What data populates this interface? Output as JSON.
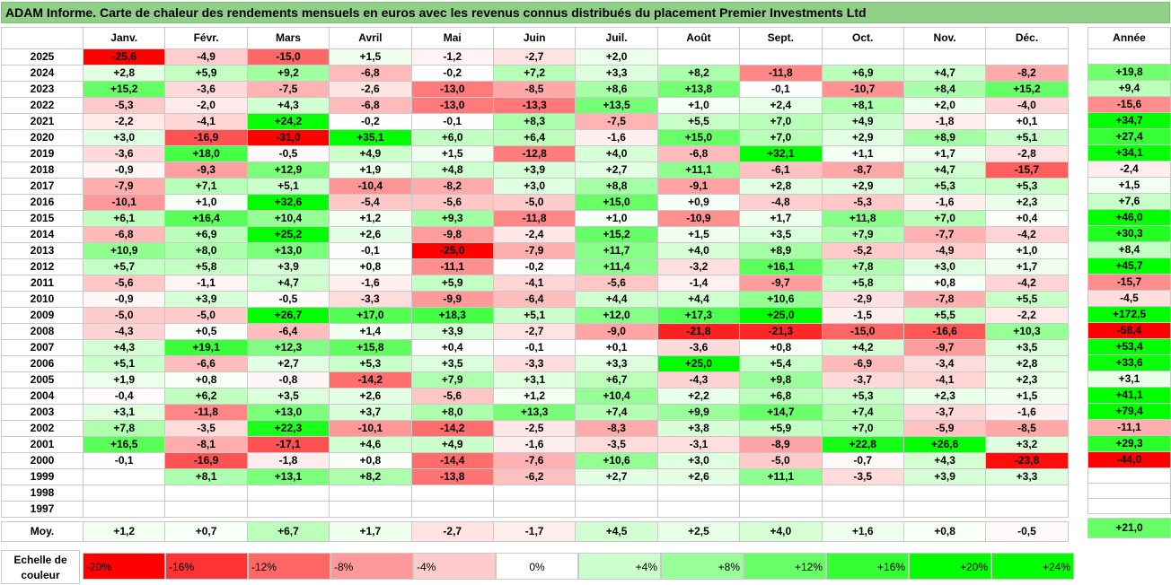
{
  "title": "ADAM Informe. Carte de chaleur des rendements mensuels en euros avec les revenus connus distribués du placement Premier Investments Ltd",
  "months": [
    "Janv.",
    "Févr.",
    "Mars",
    "Avril",
    "Mai",
    "Juin",
    "Juil.",
    "Août",
    "Sept.",
    "Oct.",
    "Nov.",
    "Déc."
  ],
  "year_header": "Année",
  "avg_label": "Moy.",
  "chart_data": {
    "type": "heatmap",
    "rows": [
      {
        "year": "2025",
        "values": [
          "-25,6",
          "-4,9",
          "-15,0",
          "+1,5",
          "-1,2",
          "-2,7",
          "+2,0",
          "",
          "",
          "",
          "",
          ""
        ],
        "annual": ""
      },
      {
        "year": "2024",
        "values": [
          "+2,8",
          "+5,9",
          "+9,2",
          "-6,8",
          "-0,2",
          "+7,2",
          "+3,3",
          "+8,2",
          "-11,8",
          "+6,9",
          "+4,7",
          "-8,2"
        ],
        "annual": "+19,8"
      },
      {
        "year": "2023",
        "values": [
          "+15,2",
          "-3,6",
          "-7,5",
          "-2,6",
          "-13,0",
          "-8,5",
          "+8,6",
          "+13,8",
          "-0,1",
          "-10,7",
          "+8,4",
          "+15,2"
        ],
        "annual": "+9,4"
      },
      {
        "year": "2022",
        "values": [
          "-5,3",
          "-2,0",
          "+4,3",
          "-6,8",
          "-13,0",
          "-13,3",
          "+13,5",
          "+1,0",
          "+2,4",
          "+8,1",
          "+2,0",
          "-4,0"
        ],
        "annual": "-15,6"
      },
      {
        "year": "2021",
        "values": [
          "-2,2",
          "-4,1",
          "+24,2",
          "-0,2",
          "-0,1",
          "+8,3",
          "-7,5",
          "+5,5",
          "+7,0",
          "+4,9",
          "-1,8",
          "+0,1"
        ],
        "annual": "+34,7"
      },
      {
        "year": "2020",
        "values": [
          "+3,0",
          "-16,9",
          "-31,0",
          "+35,1",
          "+6,0",
          "+6,4",
          "-1,6",
          "+15,0",
          "+7,0",
          "+2,9",
          "+8,9",
          "+5,1"
        ],
        "annual": "+27,4"
      },
      {
        "year": "2019",
        "values": [
          "-3,6",
          "+18,0",
          "-0,5",
          "+4,9",
          "+1,5",
          "-12,8",
          "+4,0",
          "-6,8",
          "+32,1",
          "+1,1",
          "+1,7",
          "-2,8"
        ],
        "annual": "+34,1"
      },
      {
        "year": "2018",
        "values": [
          "-0,9",
          "-9,3",
          "+12,9",
          "+1,9",
          "+4,8",
          "+3,9",
          "+2,7",
          "+11,1",
          "-6,1",
          "-8,7",
          "+4,7",
          "-15,7"
        ],
        "annual": "-2,4"
      },
      {
        "year": "2017",
        "values": [
          "-7,9",
          "+7,1",
          "+5,1",
          "-10,4",
          "-8,2",
          "+3,0",
          "+8,8",
          "-9,1",
          "+2,8",
          "+2,9",
          "+5,3",
          "+5,3"
        ],
        "annual": "+1,5"
      },
      {
        "year": "2016",
        "values": [
          "-10,1",
          "+1,0",
          "+32,6",
          "-5,4",
          "-5,6",
          "-5,0",
          "+15,0",
          "+0,9",
          "-4,8",
          "-5,3",
          "-1,6",
          "+2,3"
        ],
        "annual": "+7,6"
      },
      {
        "year": "2015",
        "values": [
          "+6,1",
          "+16,4",
          "+10,4",
          "+1,2",
          "+9,3",
          "-11,8",
          "+1,0",
          "-10,9",
          "+1,7",
          "+11,8",
          "+7,0",
          "+0,4"
        ],
        "annual": "+46,0"
      },
      {
        "year": "2014",
        "values": [
          "-6,8",
          "+6,9",
          "+25,2",
          "+2,6",
          "-9,8",
          "-2,4",
          "+15,2",
          "+1,5",
          "+3,5",
          "+7,9",
          "-7,7",
          "-4,2"
        ],
        "annual": "+30,3"
      },
      {
        "year": "2013",
        "values": [
          "+10,9",
          "+8,0",
          "+13,0",
          "-0,1",
          "-25,0",
          "-7,9",
          "+11,7",
          "+4,0",
          "+8,9",
          "-5,2",
          "-4,9",
          "+1,0"
        ],
        "annual": "+8,4"
      },
      {
        "year": "2012",
        "values": [
          "+5,7",
          "+5,8",
          "+3,9",
          "+0,8",
          "-11,1",
          "-0,2",
          "+11,4",
          "-3,2",
          "+16,1",
          "+7,8",
          "+3,0",
          "+1,7"
        ],
        "annual": "+45,7"
      },
      {
        "year": "2011",
        "values": [
          "-5,6",
          "-1,1",
          "+4,7",
          "-1,6",
          "+5,9",
          "-4,1",
          "-5,6",
          "-1,4",
          "-9,7",
          "+5,8",
          "+0,8",
          "-4,2"
        ],
        "annual": "-15,7"
      },
      {
        "year": "2010",
        "values": [
          "-0,9",
          "+3,9",
          "-0,5",
          "-3,3",
          "-9,9",
          "-6,4",
          "+4,4",
          "+4,4",
          "+10,6",
          "-2,9",
          "-7,8",
          "+5,5"
        ],
        "annual": "-4,5"
      },
      {
        "year": "2009",
        "values": [
          "-5,0",
          "-5,0",
          "+26,7",
          "+17,0",
          "+18,3",
          "+5,1",
          "+12,0",
          "+17,3",
          "+25,0",
          "-1,5",
          "+5,5",
          "-2,2"
        ],
        "annual": "+172,5"
      },
      {
        "year": "2008",
        "values": [
          "-4,3",
          "+0,5",
          "-6,4",
          "+1,4",
          "+3,9",
          "-2,7",
          "-9,0",
          "-21,8",
          "-21,3",
          "-15,0",
          "-16,6",
          "+10,3"
        ],
        "annual": "-58,4"
      },
      {
        "year": "2007",
        "values": [
          "+4,3",
          "+19,1",
          "+12,3",
          "+15,8",
          "+0,4",
          "-0,1",
          "+0,1",
          "-3,6",
          "+0,8",
          "+4,2",
          "-9,7",
          "+3,5"
        ],
        "annual": "+53,4"
      },
      {
        "year": "2006",
        "values": [
          "+5,1",
          "-6,6",
          "+2,7",
          "+5,3",
          "+3,5",
          "-3,3",
          "+3,3",
          "+25,0",
          "+5,4",
          "-6,9",
          "-3,4",
          "+2,8"
        ],
        "annual": "+33,6"
      },
      {
        "year": "2005",
        "values": [
          "+1,9",
          "+0,8",
          "-0,8",
          "-14,2",
          "+7,9",
          "+3,1",
          "+6,7",
          "-4,3",
          "+9,8",
          "-3,7",
          "-4,1",
          "+2,3"
        ],
        "annual": "+3,1"
      },
      {
        "year": "2004",
        "values": [
          "-0,4",
          "+6,2",
          "+3,5",
          "+2,6",
          "-5,6",
          "+1,2",
          "+10,4",
          "+2,2",
          "+6,8",
          "+5,3",
          "+2,3",
          "+1,5"
        ],
        "annual": "+41,1"
      },
      {
        "year": "2003",
        "values": [
          "+3,1",
          "-11,8",
          "+13,0",
          "+3,7",
          "+8,0",
          "+13,3",
          "+7,4",
          "+9,9",
          "+14,7",
          "+7,4",
          "-3,7",
          "-1,6"
        ],
        "annual": "+79,4"
      },
      {
        "year": "2002",
        "values": [
          "+7,8",
          "-3,5",
          "+22,3",
          "-10,1",
          "-14,2",
          "-2,5",
          "-8,3",
          "+3,8",
          "+5,9",
          "+7,0",
          "-5,9",
          "-8,5"
        ],
        "annual": "-11,1"
      },
      {
        "year": "2001",
        "values": [
          "+16,5",
          "-8,1",
          "-17,1",
          "+4,6",
          "+4,9",
          "-1,6",
          "-3,5",
          "-3,1",
          "-8,9",
          "+22,8",
          "+26,6",
          "+3,2"
        ],
        "annual": "+29,3"
      },
      {
        "year": "2000",
        "values": [
          "-0,1",
          "-16,9",
          "-1,8",
          "+0,8",
          "-14,4",
          "-7,6",
          "+10,6",
          "+3,0",
          "-5,0",
          "-0,7",
          "+4,3",
          "-23,8"
        ],
        "annual": "-44,0"
      },
      {
        "year": "1999",
        "values": [
          "",
          "+8,1",
          "+13,1",
          "+8,2",
          "-13,8",
          "-6,2",
          "+2,7",
          "+2,6",
          "+11,1",
          "-3,5",
          "+3,9",
          "+3,3"
        ],
        "annual": ""
      },
      {
        "year": "1998",
        "values": [
          "",
          "",
          "",
          "",
          "",
          "",
          "",
          "",
          "",
          "",
          "",
          ""
        ],
        "annual": ""
      },
      {
        "year": "1997",
        "values": [
          "",
          "",
          "",
          "",
          "",
          "",
          "",
          "",
          "",
          "",
          "",
          ""
        ],
        "annual": ""
      }
    ],
    "averages": [
      "+1,2",
      "+0,7",
      "+6,7",
      "+1,7",
      "-2,7",
      "-1,7",
      "+4,5",
      "+2,5",
      "+4,0",
      "+1,6",
      "+0,8",
      "-0,5"
    ],
    "average_annual": "+21,0",
    "color_scale": {
      "label": "Echelle de couleur",
      "steps": [
        "-20%",
        "-16%",
        "-12%",
        "-8%",
        "-4%",
        "0%",
        "+4%",
        "+8%",
        "+12%",
        "+16%",
        "+20%",
        "+24%"
      ],
      "negative_color": "#ff0000",
      "neutral_color": "#ffffff",
      "positive_color": "#00ff00"
    }
  }
}
